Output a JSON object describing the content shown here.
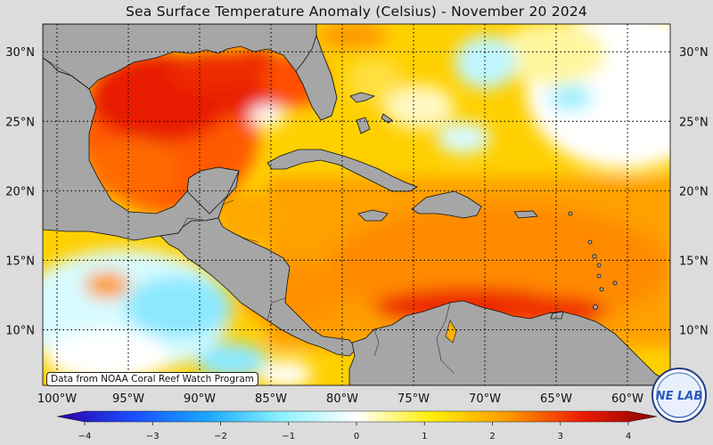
{
  "title": "Sea Surface Temperature Anomaly (Celsius) - November 20 2024",
  "credit": "Data from NOAA Coral Reef Watch Program",
  "logo": {
    "text": "NE LAB"
  },
  "map": {
    "lon_range": [
      -101,
      -57
    ],
    "lat_range": [
      6,
      32
    ],
    "lat_ticks": [
      {
        "value": 30,
        "label": "30°N"
      },
      {
        "value": 25,
        "label": "25°N"
      },
      {
        "value": 20,
        "label": "20°N"
      },
      {
        "value": 15,
        "label": "15°N"
      },
      {
        "value": 10,
        "label": "10°N"
      }
    ],
    "lon_ticks": [
      {
        "value": -100,
        "label": "100°W"
      },
      {
        "value": -95,
        "label": "95°W"
      },
      {
        "value": -90,
        "label": "90°W"
      },
      {
        "value": -85,
        "label": "85°W"
      },
      {
        "value": -80,
        "label": "80°W"
      },
      {
        "value": -75,
        "label": "75°W"
      },
      {
        "value": -70,
        "label": "70°W"
      },
      {
        "value": -65,
        "label": "65°W"
      },
      {
        "value": -60,
        "label": "60°W"
      }
    ],
    "land_color": "#a6a6a6",
    "gridlines": "dotted"
  },
  "colorbar": {
    "min": -4,
    "max": 4,
    "ticks": [
      {
        "value": -4,
        "label": "−4"
      },
      {
        "value": -3,
        "label": "−3"
      },
      {
        "value": -2,
        "label": "−2"
      },
      {
        "value": -1,
        "label": "−1"
      },
      {
        "value": 0,
        "label": "0"
      },
      {
        "value": 1,
        "label": "1"
      },
      {
        "value": 2,
        "label": "2"
      },
      {
        "value": 3,
        "label": "3"
      },
      {
        "value": 4,
        "label": "4"
      }
    ],
    "colors": [
      "#2a00a0",
      "#1a4cff",
      "#19a8ff",
      "#8ef2ff",
      "#ffffff",
      "#ffef00",
      "#ff9a00",
      "#ee1c00",
      "#8a0000"
    ]
  }
}
